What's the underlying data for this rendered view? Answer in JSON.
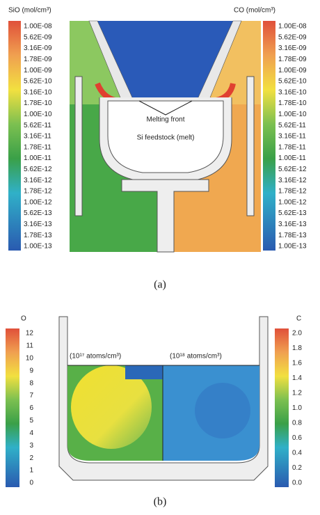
{
  "panel_a": {
    "left_colorbar": {
      "title": "SiO (mol/cm³)",
      "labels": [
        "1.00E-08",
        "5.62E-09",
        "3.16E-09",
        "1.78E-09",
        "1.00E-09",
        "5.62E-10",
        "3.16E-10",
        "1.78E-10",
        "1.00E-10",
        "5.62E-11",
        "3.16E-11",
        "1.78E-11",
        "1.00E-11",
        "5.62E-12",
        "3.16E-12",
        "1.78E-12",
        "1.00E-12",
        "5.62E-13",
        "3.16E-13",
        "1.78E-13",
        "1.00E-13"
      ]
    },
    "right_colorbar": {
      "title": "CO (mol/cm³)",
      "labels": [
        "1.00E-08",
        "5.62E-09",
        "3.16E-09",
        "1.78E-09",
        "1.00E-09",
        "5.62E-10",
        "3.16E-10",
        "1.78E-10",
        "1.00E-10",
        "5.62E-11",
        "3.16E-11",
        "1.78E-11",
        "1.00E-11",
        "5.62E-12",
        "3.16E-12",
        "1.78E-12",
        "1.00E-12",
        "5.62E-13",
        "3.16E-13",
        "1.78E-13",
        "1.00E-13"
      ]
    },
    "annotations": [
      "Melting front",
      "Si feedstock (melt)"
    ],
    "caption": "(a)"
  },
  "panel_b": {
    "left_colorbar": {
      "title": "O",
      "labels": [
        "12",
        "11",
        "10",
        "9",
        "8",
        "7",
        "6",
        "5",
        "4",
        "3",
        "2",
        "1",
        "0"
      ]
    },
    "right_colorbar": {
      "title": "C",
      "labels": [
        "2.0",
        "1.8",
        "1.6",
        "1.4",
        "1.2",
        "1.0",
        "0.8",
        "0.6",
        "0.4",
        "0.2",
        "0.0"
      ]
    },
    "annotations": [
      "(10¹⁷ atoms/cm³)",
      "(10¹⁸ atoms/cm³)"
    ],
    "caption": "(b)"
  }
}
